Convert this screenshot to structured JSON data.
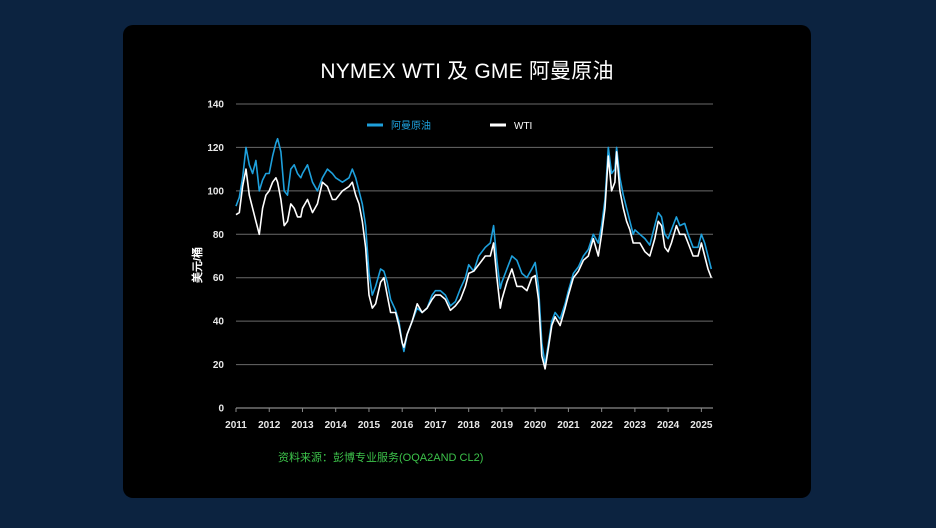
{
  "colors": {
    "background": "#0c2340",
    "panel": "#000000",
    "oman": "#1ea0dc",
    "wti": "#ffffff",
    "source": "#3cc24a",
    "grid": "#6a6a6a"
  },
  "chart_data": {
    "type": "line",
    "title": "NYMEX WTI 及 GME 阿曼原油",
    "ylabel": "美元/桶",
    "xlabel": "",
    "ylim": [
      0,
      140
    ],
    "yticks": [
      0,
      20,
      40,
      60,
      80,
      100,
      120,
      140
    ],
    "xlim": [
      2011,
      2025.35
    ],
    "xticks": [
      "2011",
      "2012",
      "2013",
      "2014",
      "2015",
      "2016",
      "2017",
      "2018",
      "2019",
      "2020",
      "2021",
      "2022",
      "2023",
      "2024",
      "2025"
    ],
    "grid": true,
    "legend": "top-center",
    "source": "资料来源：彭博专业服务(OQA2AND CL2)",
    "series": [
      {
        "name": "阿曼原油",
        "color": "#1ea0dc",
        "points": [
          [
            2011.0,
            93
          ],
          [
            2011.1,
            97
          ],
          [
            2011.2,
            106
          ],
          [
            2011.3,
            120
          ],
          [
            2011.4,
            112
          ],
          [
            2011.5,
            108
          ],
          [
            2011.6,
            114
          ],
          [
            2011.7,
            100
          ],
          [
            2011.8,
            105
          ],
          [
            2011.9,
            108
          ],
          [
            2012.0,
            108
          ],
          [
            2012.1,
            116
          ],
          [
            2012.2,
            122
          ],
          [
            2012.25,
            124
          ],
          [
            2012.35,
            118
          ],
          [
            2012.45,
            100
          ],
          [
            2012.55,
            98
          ],
          [
            2012.65,
            110
          ],
          [
            2012.75,
            112
          ],
          [
            2012.85,
            108
          ],
          [
            2012.95,
            106
          ],
          [
            2013.0,
            108
          ],
          [
            2013.15,
            112
          ],
          [
            2013.3,
            104
          ],
          [
            2013.45,
            100
          ],
          [
            2013.6,
            106
          ],
          [
            2013.75,
            110
          ],
          [
            2013.9,
            108
          ],
          [
            2014.0,
            106
          ],
          [
            2014.2,
            104
          ],
          [
            2014.4,
            106
          ],
          [
            2014.5,
            110
          ],
          [
            2014.6,
            106
          ],
          [
            2014.7,
            100
          ],
          [
            2014.8,
            94
          ],
          [
            2014.9,
            84
          ],
          [
            2015.0,
            62
          ],
          [
            2015.1,
            52
          ],
          [
            2015.2,
            56
          ],
          [
            2015.35,
            64
          ],
          [
            2015.45,
            63
          ],
          [
            2015.55,
            58
          ],
          [
            2015.65,
            50
          ],
          [
            2015.8,
            45
          ],
          [
            2015.9,
            40
          ],
          [
            2016.0,
            30
          ],
          [
            2016.05,
            26
          ],
          [
            2016.15,
            34
          ],
          [
            2016.3,
            40
          ],
          [
            2016.45,
            46
          ],
          [
            2016.6,
            44
          ],
          [
            2016.75,
            46
          ],
          [
            2016.9,
            52
          ],
          [
            2017.0,
            54
          ],
          [
            2017.15,
            54
          ],
          [
            2017.3,
            52
          ],
          [
            2017.45,
            47
          ],
          [
            2017.6,
            49
          ],
          [
            2017.75,
            55
          ],
          [
            2017.9,
            60
          ],
          [
            2018.0,
            66
          ],
          [
            2018.15,
            63
          ],
          [
            2018.3,
            70
          ],
          [
            2018.5,
            74
          ],
          [
            2018.65,
            76
          ],
          [
            2018.75,
            84
          ],
          [
            2018.85,
            68
          ],
          [
            2018.95,
            55
          ],
          [
            2019.0,
            58
          ],
          [
            2019.15,
            64
          ],
          [
            2019.3,
            70
          ],
          [
            2019.45,
            68
          ],
          [
            2019.6,
            62
          ],
          [
            2019.75,
            60
          ],
          [
            2019.9,
            64
          ],
          [
            2020.0,
            67
          ],
          [
            2020.1,
            56
          ],
          [
            2020.2,
            30
          ],
          [
            2020.3,
            20
          ],
          [
            2020.4,
            30
          ],
          [
            2020.5,
            40
          ],
          [
            2020.6,
            44
          ],
          [
            2020.75,
            41
          ],
          [
            2020.9,
            48
          ],
          [
            2021.0,
            54
          ],
          [
            2021.15,
            62
          ],
          [
            2021.3,
            65
          ],
          [
            2021.45,
            70
          ],
          [
            2021.6,
            73
          ],
          [
            2021.75,
            80
          ],
          [
            2021.9,
            76
          ],
          [
            2022.0,
            84
          ],
          [
            2022.1,
            96
          ],
          [
            2022.2,
            120
          ],
          [
            2022.3,
            108
          ],
          [
            2022.4,
            110
          ],
          [
            2022.45,
            120
          ],
          [
            2022.55,
            106
          ],
          [
            2022.65,
            98
          ],
          [
            2022.75,
            92
          ],
          [
            2022.85,
            86
          ],
          [
            2022.95,
            80
          ],
          [
            2023.0,
            82
          ],
          [
            2023.15,
            80
          ],
          [
            2023.3,
            78
          ],
          [
            2023.45,
            75
          ],
          [
            2023.6,
            84
          ],
          [
            2023.7,
            90
          ],
          [
            2023.8,
            88
          ],
          [
            2023.9,
            80
          ],
          [
            2024.0,
            78
          ],
          [
            2024.1,
            82
          ],
          [
            2024.25,
            88
          ],
          [
            2024.35,
            84
          ],
          [
            2024.5,
            85
          ],
          [
            2024.6,
            80
          ],
          [
            2024.75,
            74
          ],
          [
            2024.9,
            74
          ],
          [
            2025.0,
            80
          ],
          [
            2025.1,
            76
          ],
          [
            2025.2,
            70
          ],
          [
            2025.3,
            64
          ]
        ]
      },
      {
        "name": "WTI",
        "color": "#ffffff",
        "points": [
          [
            2011.0,
            89
          ],
          [
            2011.1,
            90
          ],
          [
            2011.2,
            102
          ],
          [
            2011.3,
            110
          ],
          [
            2011.4,
            98
          ],
          [
            2011.5,
            92
          ],
          [
            2011.6,
            86
          ],
          [
            2011.7,
            80
          ],
          [
            2011.8,
            92
          ],
          [
            2011.9,
            98
          ],
          [
            2012.0,
            100
          ],
          [
            2012.1,
            104
          ],
          [
            2012.2,
            106
          ],
          [
            2012.25,
            104
          ],
          [
            2012.35,
            96
          ],
          [
            2012.45,
            84
          ],
          [
            2012.55,
            86
          ],
          [
            2012.65,
            94
          ],
          [
            2012.75,
            92
          ],
          [
            2012.85,
            88
          ],
          [
            2012.95,
            88
          ],
          [
            2013.0,
            92
          ],
          [
            2013.15,
            96
          ],
          [
            2013.3,
            90
          ],
          [
            2013.45,
            94
          ],
          [
            2013.6,
            104
          ],
          [
            2013.75,
            102
          ],
          [
            2013.9,
            96
          ],
          [
            2014.0,
            96
          ],
          [
            2014.2,
            100
          ],
          [
            2014.4,
            102
          ],
          [
            2014.5,
            104
          ],
          [
            2014.6,
            98
          ],
          [
            2014.7,
            94
          ],
          [
            2014.8,
            86
          ],
          [
            2014.9,
            74
          ],
          [
            2015.0,
            52
          ],
          [
            2015.1,
            46
          ],
          [
            2015.2,
            48
          ],
          [
            2015.35,
            58
          ],
          [
            2015.45,
            60
          ],
          [
            2015.55,
            52
          ],
          [
            2015.65,
            44
          ],
          [
            2015.8,
            44
          ],
          [
            2015.9,
            38
          ],
          [
            2016.0,
            30
          ],
          [
            2016.05,
            28
          ],
          [
            2016.15,
            34
          ],
          [
            2016.3,
            40
          ],
          [
            2016.45,
            48
          ],
          [
            2016.6,
            44
          ],
          [
            2016.75,
            46
          ],
          [
            2016.9,
            50
          ],
          [
            2017.0,
            52
          ],
          [
            2017.15,
            52
          ],
          [
            2017.3,
            50
          ],
          [
            2017.45,
            45
          ],
          [
            2017.6,
            47
          ],
          [
            2017.75,
            50
          ],
          [
            2017.9,
            56
          ],
          [
            2018.0,
            62
          ],
          [
            2018.15,
            63
          ],
          [
            2018.3,
            66
          ],
          [
            2018.5,
            70
          ],
          [
            2018.65,
            70
          ],
          [
            2018.75,
            76
          ],
          [
            2018.85,
            60
          ],
          [
            2018.95,
            46
          ],
          [
            2019.0,
            50
          ],
          [
            2019.15,
            58
          ],
          [
            2019.3,
            64
          ],
          [
            2019.45,
            56
          ],
          [
            2019.6,
            56
          ],
          [
            2019.75,
            54
          ],
          [
            2019.9,
            60
          ],
          [
            2020.0,
            61
          ],
          [
            2020.1,
            50
          ],
          [
            2020.2,
            24
          ],
          [
            2020.3,
            18
          ],
          [
            2020.4,
            28
          ],
          [
            2020.5,
            38
          ],
          [
            2020.6,
            42
          ],
          [
            2020.75,
            38
          ],
          [
            2020.9,
            46
          ],
          [
            2021.0,
            52
          ],
          [
            2021.15,
            60
          ],
          [
            2021.3,
            63
          ],
          [
            2021.45,
            68
          ],
          [
            2021.6,
            70
          ],
          [
            2021.75,
            78
          ],
          [
            2021.9,
            70
          ],
          [
            2022.0,
            80
          ],
          [
            2022.1,
            92
          ],
          [
            2022.2,
            116
          ],
          [
            2022.3,
            100
          ],
          [
            2022.4,
            104
          ],
          [
            2022.45,
            118
          ],
          [
            2022.55,
            100
          ],
          [
            2022.65,
            92
          ],
          [
            2022.75,
            86
          ],
          [
            2022.85,
            82
          ],
          [
            2022.95,
            76
          ],
          [
            2023.0,
            76
          ],
          [
            2023.15,
            76
          ],
          [
            2023.3,
            72
          ],
          [
            2023.45,
            70
          ],
          [
            2023.6,
            78
          ],
          [
            2023.7,
            86
          ],
          [
            2023.8,
            84
          ],
          [
            2023.9,
            74
          ],
          [
            2024.0,
            72
          ],
          [
            2024.1,
            76
          ],
          [
            2024.25,
            84
          ],
          [
            2024.35,
            80
          ],
          [
            2024.5,
            80
          ],
          [
            2024.6,
            76
          ],
          [
            2024.75,
            70
          ],
          [
            2024.9,
            70
          ],
          [
            2025.0,
            76
          ],
          [
            2025.1,
            70
          ],
          [
            2025.2,
            64
          ],
          [
            2025.3,
            60
          ]
        ]
      }
    ]
  }
}
